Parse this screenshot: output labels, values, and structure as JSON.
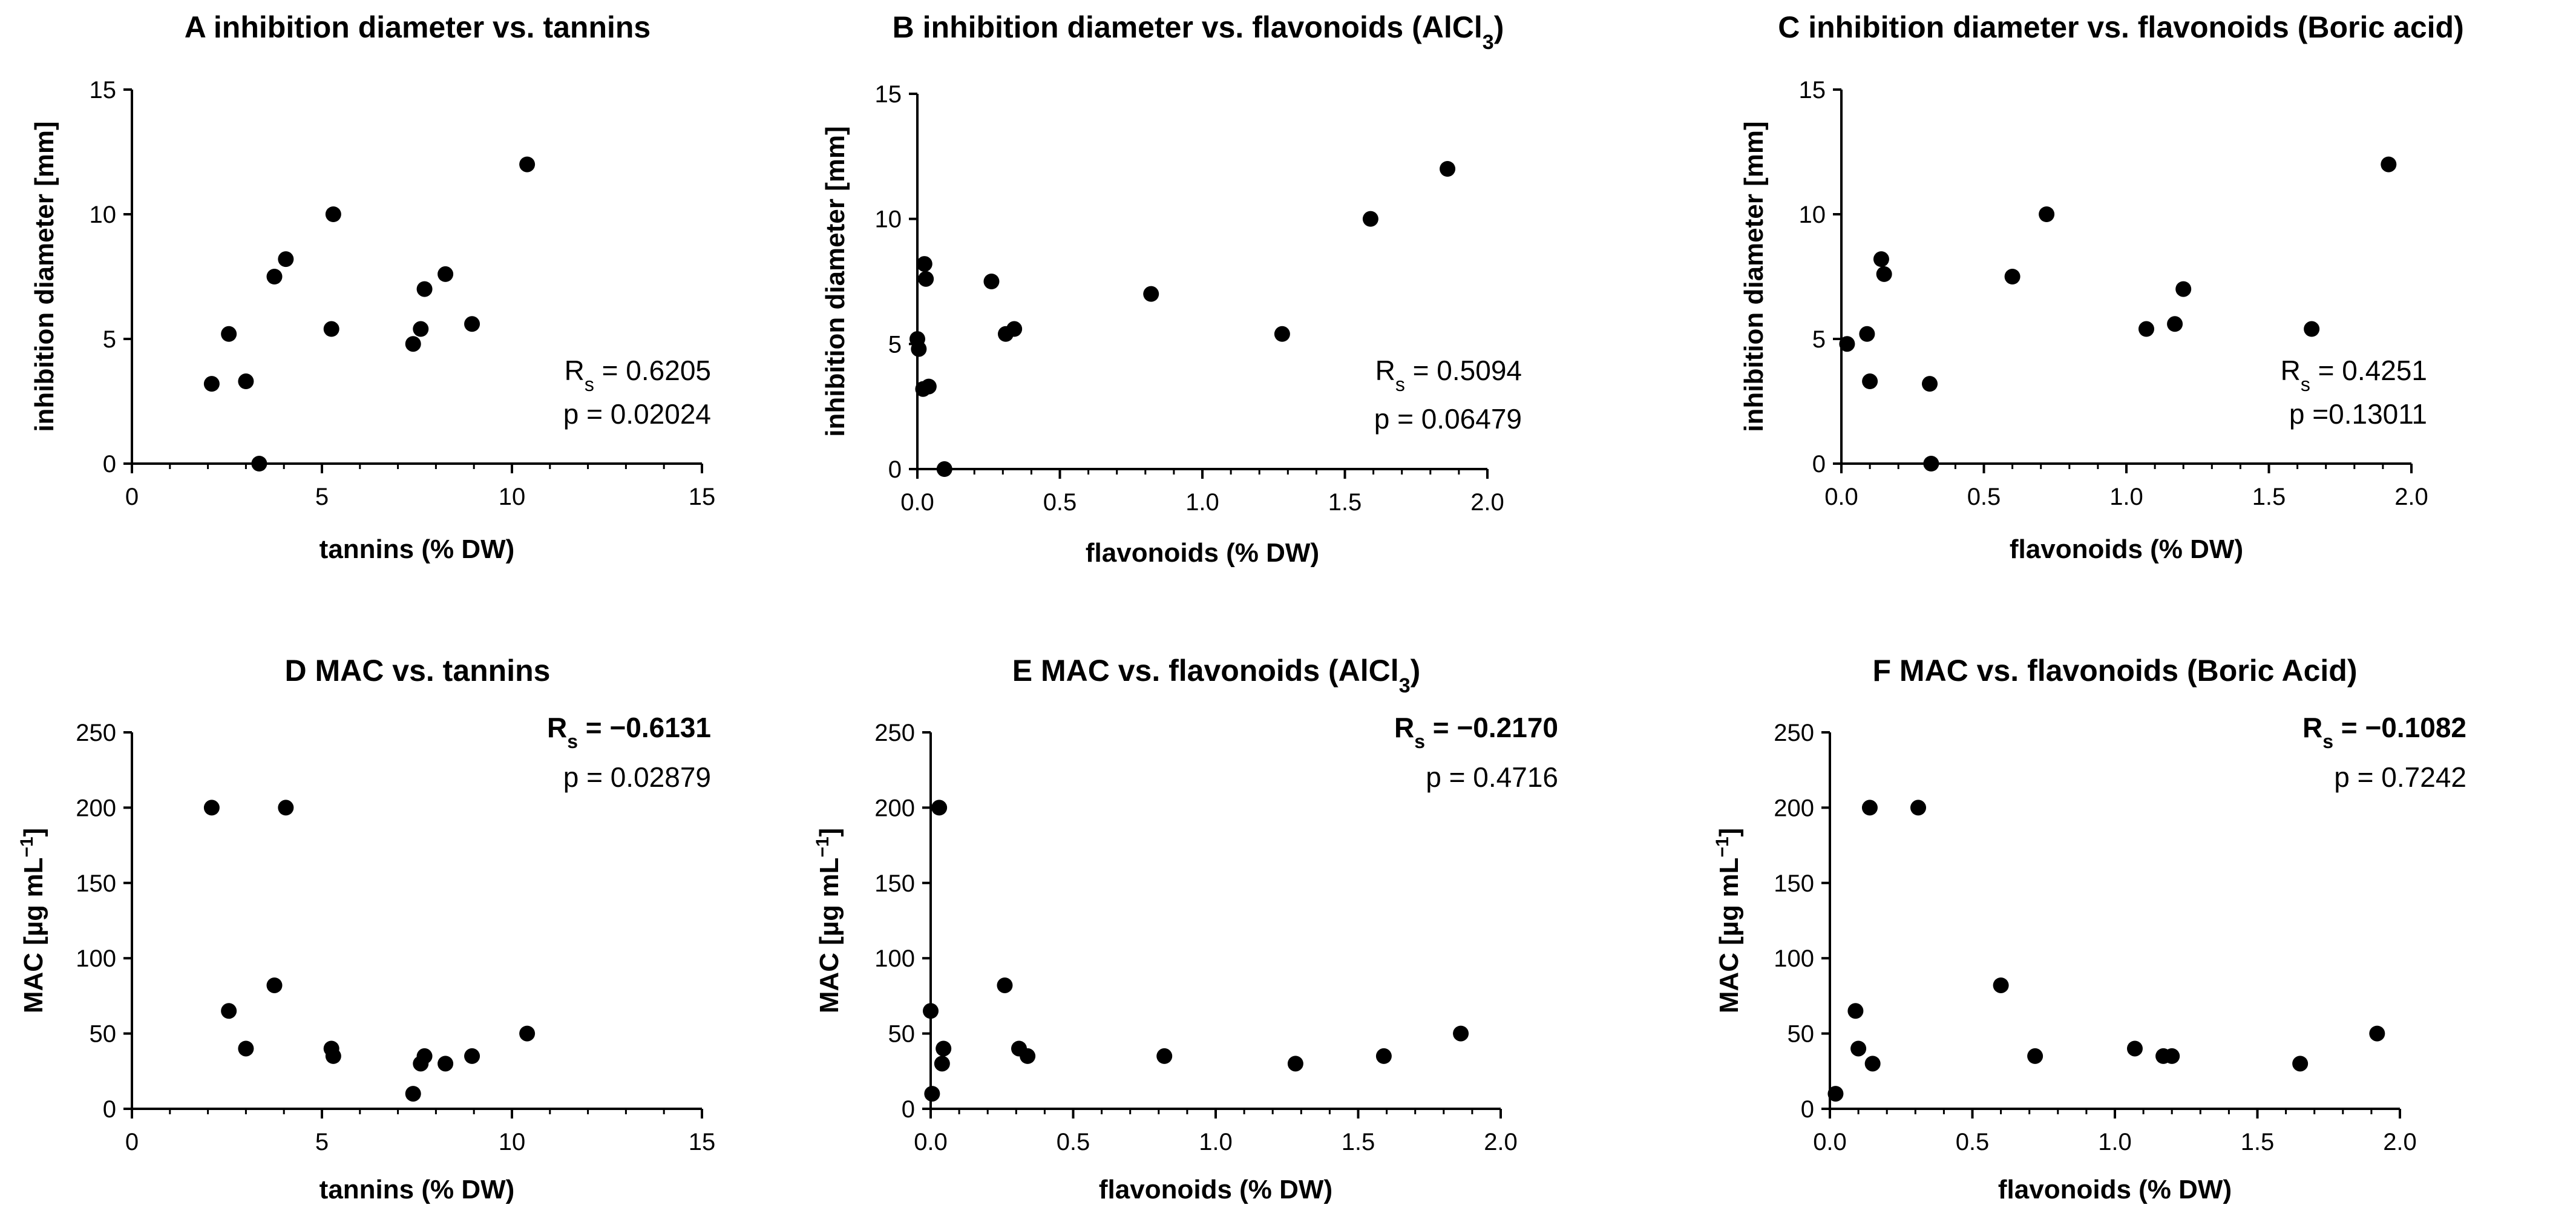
{
  "chart_data": [
    {
      "id": "A",
      "type": "scatter",
      "title": "A inhibition diameter vs. tannins",
      "xlabel": "tannins (% DW)",
      "ylabel": "inhibition diameter [mm]",
      "xlim": [
        0,
        15
      ],
      "ylim": [
        0,
        15
      ],
      "xticks": [
        0,
        5,
        10,
        15
      ],
      "yticks": [
        0,
        5,
        10,
        15
      ],
      "xtick_labels": [
        "0",
        "5",
        "10",
        "15"
      ],
      "ytick_labels": [
        "0",
        "5",
        "10",
        "15"
      ],
      "rs_label": "R",
      "rs_sub": "s",
      "rs_value": " = 0.6205",
      "p_text": "p = 0.02024",
      "stat_bold": false,
      "x": [
        2.1,
        2.55,
        3.0,
        3.35,
        3.75,
        4.05,
        5.25,
        5.3,
        7.4,
        7.6,
        7.7,
        8.25,
        8.95,
        10.4
      ],
      "y": [
        3.2,
        5.2,
        3.3,
        0.0,
        7.5,
        8.2,
        5.4,
        10.0,
        4.8,
        5.4,
        7.0,
        7.6,
        5.6,
        12.0
      ]
    },
    {
      "id": "B",
      "type": "scatter",
      "title": "B inhibition diameter vs. flavonoids (AlCl",
      "title_sub": "3",
      "title_end": ")",
      "xlabel": "flavonoids (% DW)",
      "ylabel": "inhibition diameter [mm]",
      "xlim": [
        0,
        2
      ],
      "ylim": [
        0,
        15
      ],
      "xticks": [
        0,
        0.5,
        1,
        1.5,
        2
      ],
      "yticks": [
        0,
        5,
        10,
        15
      ],
      "xtick_labels": [
        "0.0",
        "0.5",
        "1.0",
        "1.5",
        "2.0"
      ],
      "ytick_labels": [
        "0",
        "5",
        "10",
        "15"
      ],
      "rs_label": "R",
      "rs_sub": "s",
      "rs_value": " = 0.5094",
      "p_text": "p = 0.06479",
      "stat_bold": false,
      "x": [
        0.0,
        0.005,
        0.02,
        0.025,
        0.03,
        0.04,
        0.095,
        0.26,
        0.31,
        0.34,
        0.82,
        1.28,
        1.59,
        1.86
      ],
      "y": [
        5.2,
        4.8,
        3.2,
        8.2,
        7.6,
        3.3,
        0.0,
        7.5,
        5.4,
        5.6,
        7.0,
        5.4,
        10.0,
        12.0
      ]
    },
    {
      "id": "C",
      "type": "scatter",
      "title": "C inhibition diameter vs. flavonoids (Boric acid)",
      "xlabel": "flavonoids (% DW)",
      "ylabel": "inhibition diameter [mm]",
      "xlim": [
        0,
        2
      ],
      "ylim": [
        0,
        15
      ],
      "xticks": [
        0,
        0.5,
        1,
        1.5,
        2
      ],
      "yticks": [
        0,
        5,
        10,
        15
      ],
      "xtick_labels": [
        "0.0",
        "0.5",
        "1.0",
        "1.5",
        "2.0"
      ],
      "ytick_labels": [
        "0",
        "5",
        "10",
        "15"
      ],
      "rs_label": "R",
      "rs_sub": "s",
      "rs_value": " = 0.4251",
      "p_text": "p =0.13011",
      "stat_bold": false,
      "x": [
        0.02,
        0.09,
        0.1,
        0.14,
        0.15,
        0.31,
        0.315,
        0.6,
        0.72,
        1.07,
        1.17,
        1.2,
        1.65,
        1.92
      ],
      "y": [
        4.8,
        5.2,
        3.3,
        8.2,
        7.6,
        3.2,
        0.0,
        7.5,
        10.0,
        5.4,
        5.6,
        7.0,
        5.4,
        12.0
      ]
    },
    {
      "id": "D",
      "type": "scatter",
      "title": "D MAC vs. tannins",
      "xlabel": "tannins (% DW)",
      "ylabel": "MAC [µg mL",
      "ylabel_sup": "−1",
      "ylabel_end": "]",
      "xlim": [
        0,
        15
      ],
      "ylim": [
        0,
        250
      ],
      "xticks": [
        0,
        5,
        10,
        15
      ],
      "yticks": [
        0,
        50,
        100,
        150,
        200,
        250
      ],
      "xtick_labels": [
        "0",
        "5",
        "10",
        "15"
      ],
      "ytick_labels": [
        "0",
        "50",
        "100",
        "150",
        "200",
        "250"
      ],
      "rs_label": "R",
      "rs_sub": "s",
      "rs_value": " = −0.6131",
      "p_text": "p = 0.02879",
      "stat_bold": true,
      "x": [
        2.1,
        2.55,
        3.0,
        3.75,
        4.05,
        5.25,
        5.3,
        7.4,
        7.6,
        7.7,
        8.25,
        8.95,
        10.4
      ],
      "y": [
        200,
        65,
        40,
        82,
        200,
        40,
        35,
        10,
        30,
        35,
        30,
        35,
        50
      ]
    },
    {
      "id": "E",
      "type": "scatter",
      "title": "E MAC vs. flavonoids (AlCl",
      "title_sub": "3",
      "title_end": ")",
      "xlabel": "flavonoids (% DW)",
      "ylabel": "MAC [µg mL",
      "ylabel_sup": "−1",
      "ylabel_end": "]",
      "xlim": [
        0,
        2
      ],
      "ylim": [
        0,
        250
      ],
      "xticks": [
        0,
        0.5,
        1,
        1.5,
        2
      ],
      "yticks": [
        0,
        50,
        100,
        150,
        200,
        250
      ],
      "xtick_labels": [
        "0.0",
        "0.5",
        "1.0",
        "1.5",
        "2.0"
      ],
      "ytick_labels": [
        "0",
        "50",
        "100",
        "150",
        "200",
        "250"
      ],
      "rs_label": "R",
      "rs_sub": "s",
      "rs_value": " = −0.2170",
      "p_text": "p = 0.4716",
      "stat_bold": true,
      "x": [
        0.0,
        0.005,
        0.03,
        0.04,
        0.045,
        0.26,
        0.31,
        0.34,
        0.82,
        1.28,
        1.59,
        1.86
      ],
      "y": [
        65,
        10,
        200,
        30,
        40,
        82,
        40,
        35,
        35,
        30,
        35,
        50
      ]
    },
    {
      "id": "F",
      "type": "scatter",
      "title": "F MAC vs. flavonoids (Boric Acid)",
      "xlabel": "flavonoids (% DW)",
      "ylabel": "MAC [µg mL",
      "ylabel_sup": "−1",
      "ylabel_end": "]",
      "xlim": [
        0,
        2
      ],
      "ylim": [
        0,
        250
      ],
      "xticks": [
        0,
        0.5,
        1,
        1.5,
        2
      ],
      "yticks": [
        0,
        50,
        100,
        150,
        200,
        250
      ],
      "xtick_labels": [
        "0.0",
        "0.5",
        "1.0",
        "1.5",
        "2.0"
      ],
      "ytick_labels": [
        "0",
        "50",
        "100",
        "150",
        "200",
        "250"
      ],
      "rs_label": "R",
      "rs_sub": "s",
      "rs_value": " = −0.1082",
      "p_text": "p = 0.7242",
      "stat_bold": true,
      "x": [
        0.02,
        0.09,
        0.1,
        0.14,
        0.15,
        0.31,
        0.6,
        0.72,
        1.07,
        1.17,
        1.2,
        1.65,
        1.92
      ],
      "y": [
        10,
        65,
        40,
        200,
        30,
        200,
        82,
        35,
        40,
        35,
        35,
        30,
        50
      ]
    }
  ]
}
